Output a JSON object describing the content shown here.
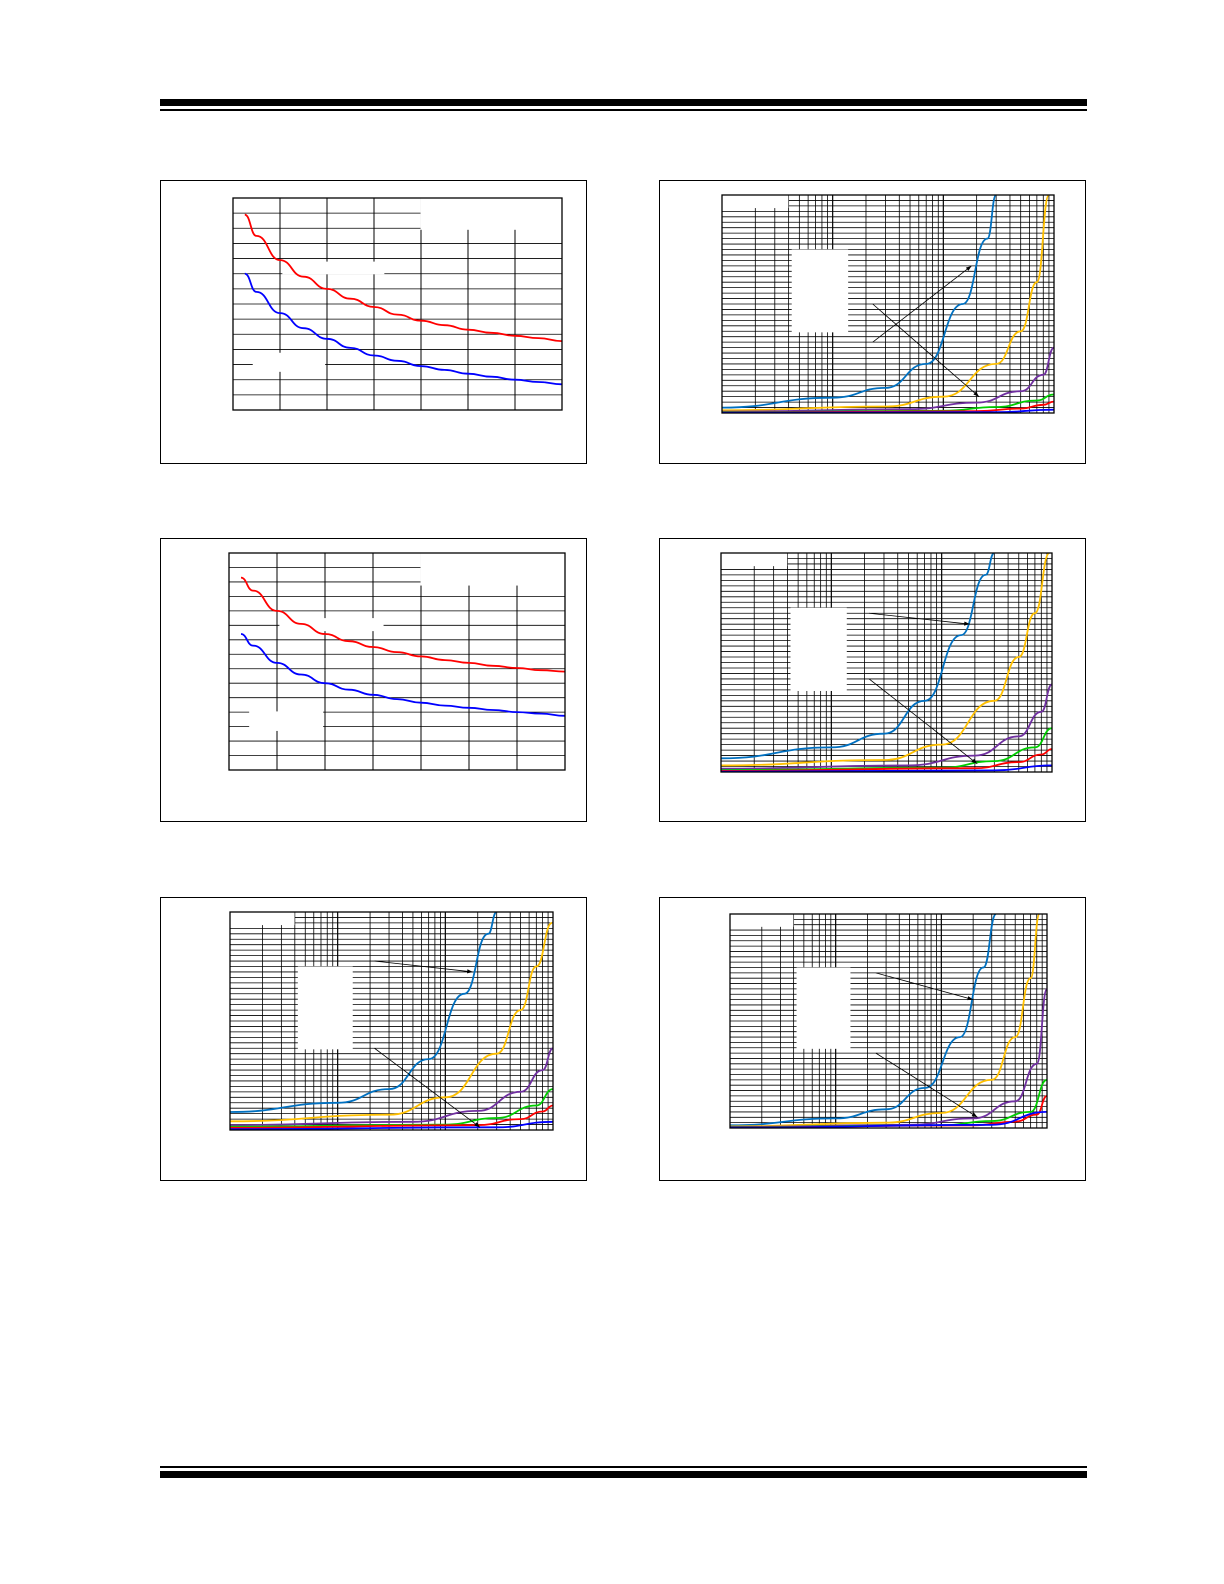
{
  "chart_data": [
    {
      "type": "line",
      "x_scale": "linear",
      "xlim": [
        0,
        7
      ],
      "ylim": [
        0,
        14
      ],
      "x_major": 7,
      "y_minor": 14,
      "label_boxes": [
        "top-right",
        "mid-left",
        "lower-left"
      ],
      "series": [
        {
          "color": "#ff0000",
          "points": [
            [
              0.25,
              12.9
            ],
            [
              0.5,
              11.5
            ],
            [
              1,
              9.9
            ],
            [
              1.5,
              8.8
            ],
            [
              2,
              8
            ],
            [
              2.5,
              7.35
            ],
            [
              3,
              6.8
            ],
            [
              3.5,
              6.3
            ],
            [
              4,
              5.9
            ],
            [
              4.5,
              5.6
            ],
            [
              5,
              5.3
            ],
            [
              5.5,
              5.1
            ],
            [
              6,
              4.9
            ],
            [
              6.5,
              4.75
            ],
            [
              7,
              4.55
            ]
          ]
        },
        {
          "color": "#0000ff",
          "points": [
            [
              0.25,
              9
            ],
            [
              0.5,
              7.8
            ],
            [
              1,
              6.4
            ],
            [
              1.5,
              5.4
            ],
            [
              2,
              4.7
            ],
            [
              2.5,
              4.1
            ],
            [
              3,
              3.6
            ],
            [
              3.5,
              3.25
            ],
            [
              4,
              2.9
            ],
            [
              4.5,
              2.65
            ],
            [
              5,
              2.4
            ],
            [
              5.5,
              2.2
            ],
            [
              6,
              2.0
            ],
            [
              6.5,
              1.85
            ],
            [
              7,
              1.7
            ]
          ]
        }
      ]
    },
    {
      "type": "line",
      "x_scale": "log",
      "xlim": [
        10,
        10000
      ],
      "ylim": [
        0,
        40
      ],
      "y_minor": 40,
      "label_boxes": [
        "top-left",
        "mid-left"
      ],
      "series": [
        {
          "color": "#0070c0",
          "points": [
            [
              10,
              1
            ],
            [
              100,
              2.8
            ],
            [
              300,
              4.6
            ],
            [
              700,
              9
            ],
            [
              1500,
              20
            ],
            [
              2500,
              32
            ],
            [
              3000,
              40
            ]
          ]
        },
        {
          "color": "#ffc000",
          "points": [
            [
              10,
              0.5
            ],
            [
              300,
              1.2
            ],
            [
              1000,
              3
            ],
            [
              3000,
              9
            ],
            [
              5000,
              15
            ],
            [
              7000,
              24
            ],
            [
              9000,
              40
            ]
          ]
        },
        {
          "color": "#7030a0",
          "points": [
            [
              10,
              0.25
            ],
            [
              500,
              0.7
            ],
            [
              2000,
              1.9
            ],
            [
              5000,
              4
            ],
            [
              8000,
              7
            ],
            [
              10000,
              12
            ]
          ]
        },
        {
          "color": "#00cc00",
          "points": [
            [
              10,
              0.15
            ],
            [
              1000,
              0.4
            ],
            [
              3000,
              1.1
            ],
            [
              7000,
              2.3
            ],
            [
              10000,
              3.4
            ]
          ]
        },
        {
          "color": "#ff0000",
          "points": [
            [
              10,
              0.08
            ],
            [
              2000,
              0.35
            ],
            [
              5000,
              0.8
            ],
            [
              8000,
              1.5
            ],
            [
              10000,
              2.1
            ]
          ]
        },
        {
          "color": "#0000ff",
          "points": [
            [
              10,
              0.03
            ],
            [
              3000,
              0.15
            ],
            [
              10000,
              0.6
            ]
          ]
        }
      ],
      "arrows": [
        {
          "from": [
            230,
            13
          ],
          "to": [
            1800,
            27
          ]
        },
        {
          "from": [
            230,
            20
          ],
          "to": [
            2100,
            3
          ]
        }
      ]
    },
    {
      "type": "line",
      "x_scale": "linear",
      "xlim": [
        0,
        7
      ],
      "ylim": [
        0,
        15
      ],
      "x_major": 7,
      "y_minor": 15,
      "label_boxes": [
        "top-right",
        "mid-left",
        "lower-left"
      ],
      "series": [
        {
          "color": "#ff0000",
          "points": [
            [
              0.25,
              13.3
            ],
            [
              0.5,
              12.4
            ],
            [
              1,
              11
            ],
            [
              1.5,
              10.1
            ],
            [
              2,
              9.4
            ],
            [
              2.5,
              8.9
            ],
            [
              3,
              8.5
            ],
            [
              3.5,
              8.15
            ],
            [
              4,
              7.85
            ],
            [
              4.5,
              7.6
            ],
            [
              5,
              7.4
            ],
            [
              5.5,
              7.2
            ],
            [
              6,
              7.05
            ],
            [
              6.5,
              6.9
            ],
            [
              7,
              6.8
            ]
          ]
        },
        {
          "color": "#0000ff",
          "points": [
            [
              0.25,
              9.4
            ],
            [
              0.5,
              8.6
            ],
            [
              1,
              7.4
            ],
            [
              1.5,
              6.6
            ],
            [
              2,
              6
            ],
            [
              2.5,
              5.55
            ],
            [
              3,
              5.2
            ],
            [
              3.5,
              4.9
            ],
            [
              4,
              4.65
            ],
            [
              4.5,
              4.45
            ],
            [
              5,
              4.3
            ],
            [
              5.5,
              4.15
            ],
            [
              6,
              4.0
            ],
            [
              6.5,
              3.9
            ],
            [
              7,
              3.75
            ]
          ]
        }
      ]
    },
    {
      "type": "line",
      "x_scale": "log",
      "xlim": [
        10,
        10000
      ],
      "ylim": [
        0,
        40
      ],
      "y_minor": 40,
      "label_boxes": [
        "top-left",
        "mid-left"
      ],
      "series": [
        {
          "color": "#0070c0",
          "points": [
            [
              10,
              2.5
            ],
            [
              100,
              4.5
            ],
            [
              300,
              7
            ],
            [
              700,
              13
            ],
            [
              1500,
              25
            ],
            [
              2500,
              36
            ],
            [
              3000,
              40
            ]
          ]
        },
        {
          "color": "#ffc000",
          "points": [
            [
              10,
              1.2
            ],
            [
              300,
              2.2
            ],
            [
              1000,
              5
            ],
            [
              3000,
              13
            ],
            [
              5000,
              21
            ],
            [
              7000,
              29
            ],
            [
              9500,
              40
            ]
          ]
        },
        {
          "color": "#7030a0",
          "points": [
            [
              10,
              0.6
            ],
            [
              500,
              1.2
            ],
            [
              2000,
              3
            ],
            [
              5000,
              6.5
            ],
            [
              8000,
              11
            ],
            [
              10000,
              16
            ]
          ]
        },
        {
          "color": "#00cc00",
          "points": [
            [
              10,
              0.35
            ],
            [
              1000,
              0.8
            ],
            [
              3000,
              2
            ],
            [
              7000,
              4.5
            ],
            [
              10000,
              8
            ]
          ]
        },
        {
          "color": "#ff0000",
          "points": [
            [
              10,
              0.2
            ],
            [
              2000,
              0.7
            ],
            [
              5000,
              1.8
            ],
            [
              8000,
              3.2
            ],
            [
              10000,
              4.2
            ]
          ]
        },
        {
          "color": "#0000ff",
          "points": [
            [
              10,
              0.05
            ],
            [
              3000,
              0.3
            ],
            [
              10000,
              1.2
            ]
          ]
        }
      ],
      "arrows": [
        {
          "from": [
            220,
            29
          ],
          "to": [
            1800,
            27
          ]
        },
        {
          "from": [
            220,
            17
          ],
          "to": [
            2100,
            1.5
          ]
        }
      ]
    },
    {
      "type": "line",
      "x_scale": "log",
      "xlim": [
        10,
        10000
      ],
      "ylim": [
        0,
        40
      ],
      "y_minor": 40,
      "label_boxes": [
        "top-left",
        "mid-left"
      ],
      "series": [
        {
          "color": "#0070c0",
          "points": [
            [
              10,
              3.3
            ],
            [
              100,
              5
            ],
            [
              300,
              7.5
            ],
            [
              700,
              13
            ],
            [
              1500,
              25
            ],
            [
              2500,
              36
            ],
            [
              3000,
              40
            ]
          ]
        },
        {
          "color": "#ffc000",
          "points": [
            [
              10,
              1.6
            ],
            [
              300,
              2.8
            ],
            [
              1000,
              6
            ],
            [
              3000,
              14
            ],
            [
              5000,
              22
            ],
            [
              7000,
              30
            ],
            [
              9800,
              38
            ]
          ]
        },
        {
          "color": "#7030a0",
          "points": [
            [
              10,
              0.9
            ],
            [
              500,
              1.5
            ],
            [
              2000,
              3.5
            ],
            [
              5000,
              7
            ],
            [
              8000,
              11
            ],
            [
              10000,
              15
            ]
          ]
        },
        {
          "color": "#00cc00",
          "points": [
            [
              10,
              0.6
            ],
            [
              1000,
              1
            ],
            [
              3000,
              2.2
            ],
            [
              7000,
              4.5
            ],
            [
              10000,
              7.5
            ]
          ]
        },
        {
          "color": "#ff0000",
          "points": [
            [
              10,
              0.4
            ],
            [
              2000,
              0.9
            ],
            [
              5000,
              2
            ],
            [
              8000,
              3.4
            ],
            [
              10000,
              4.5
            ]
          ]
        },
        {
          "color": "#0000ff",
          "points": [
            [
              10,
              0.15
            ],
            [
              3000,
              0.5
            ],
            [
              10000,
              1.5
            ]
          ]
        }
      ],
      "arrows": [
        {
          "from": [
            220,
            31
          ],
          "to": [
            1800,
            29
          ]
        },
        {
          "from": [
            220,
            15
          ],
          "to": [
            2100,
            0.5
          ]
        }
      ]
    },
    {
      "type": "line",
      "x_scale": "log",
      "xlim": [
        10,
        10000
      ],
      "ylim": [
        0,
        40
      ],
      "y_minor": 40,
      "label_boxes": [
        "top-left",
        "mid-left"
      ],
      "series": [
        {
          "color": "#0070c0",
          "points": [
            [
              10,
              0.5
            ],
            [
              100,
              1.8
            ],
            [
              300,
              3.5
            ],
            [
              700,
              7.5
            ],
            [
              1500,
              17
            ],
            [
              2500,
              30
            ],
            [
              3300,
              40
            ]
          ]
        },
        {
          "color": "#ffc000",
          "points": [
            [
              10,
              0.3
            ],
            [
              300,
              1
            ],
            [
              1000,
              2.8
            ],
            [
              3000,
              9
            ],
            [
              5000,
              17
            ],
            [
              7000,
              28
            ],
            [
              8500,
              40
            ]
          ]
        },
        {
          "color": "#7030a0",
          "points": [
            [
              10,
              0.2
            ],
            [
              500,
              0.6
            ],
            [
              2000,
              1.8
            ],
            [
              5000,
              5
            ],
            [
              8000,
              12
            ],
            [
              10000,
              26
            ]
          ]
        },
        {
          "color": "#00cc00",
          "points": [
            [
              10,
              0.15
            ],
            [
              1000,
              0.5
            ],
            [
              3000,
              1.3
            ],
            [
              7000,
              3
            ],
            [
              10000,
              9
            ]
          ]
        },
        {
          "color": "#ff0000",
          "points": [
            [
              10,
              0.1
            ],
            [
              2000,
              0.5
            ],
            [
              5000,
              1.2
            ],
            [
              8000,
              2.5
            ],
            [
              10000,
              6
            ]
          ]
        },
        {
          "color": "#0000ff",
          "points": [
            [
              10,
              0.05
            ],
            [
              3000,
              0.6
            ],
            [
              10000,
              3
            ]
          ]
        }
      ],
      "arrows": [
        {
          "from": [
            240,
            29
          ],
          "to": [
            2000,
            24
          ]
        },
        {
          "from": [
            240,
            14
          ],
          "to": [
            2200,
            2
          ]
        }
      ]
    }
  ]
}
